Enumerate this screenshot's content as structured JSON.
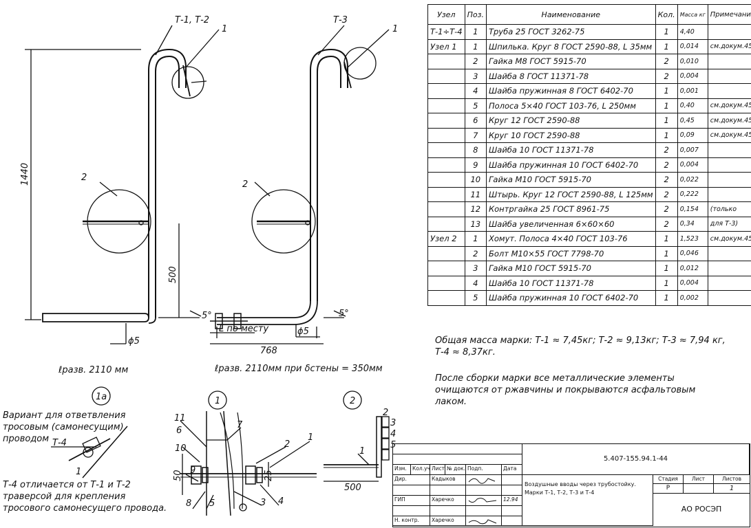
{
  "left_drawing": {
    "node_label": "Т-1, Т-2",
    "callout_1": "1",
    "callout_2": "2",
    "dim_height": "1440",
    "dim_500": "500",
    "angle": "5°",
    "diameter": "ϕ5",
    "length_text": "ℓразв. 2110 мм"
  },
  "right_drawing": {
    "node_label": "Т-3",
    "callout_1": "1",
    "callout_2": "2",
    "angle": "5°",
    "diameter": "ϕ5",
    "by_place": "L по месту",
    "dim_768": "768",
    "length_text": "ℓразв. 2110мм при δстены = 350мм"
  },
  "detail_1a": {
    "circle": "1а",
    "caption": "Вариант для ответвления тросовым (самонесущим) проводом",
    "t4": "Т-4",
    "one": "1",
    "note": "Т-4 отличается от Т-1 и Т-2 траверсой для крепления тросового самонесущего провода."
  },
  "detail_1": {
    "circle": "1",
    "labels": [
      "11",
      "6",
      "10",
      "9",
      "8",
      "5",
      "7",
      "2",
      "1",
      "3",
      "4"
    ],
    "dim_50": "50",
    "dim_25": "25"
  },
  "detail_2": {
    "circle": "2",
    "labels": [
      "1",
      "2",
      "3",
      "4",
      "5"
    ],
    "dim_500": "500"
  },
  "spec_table": {
    "headers": [
      "Узел",
      "Поз.",
      "Наименование",
      "Кол.",
      "Масса кг",
      "Примечание"
    ],
    "rows": [
      [
        "Т-1÷Т-4",
        "1",
        "Труба 25 ГОСТ 3262-75",
        "1",
        "4,40",
        ""
      ],
      [
        "Узел 1",
        "1",
        "Шпилька. Круг 8 ГОСТ 2590-88, L 35мм",
        "1",
        "0,014",
        "см.докум.45"
      ],
      [
        "",
        "2",
        "Гайка М8 ГОСТ 5915-70",
        "2",
        "0,010",
        ""
      ],
      [
        "",
        "3",
        "Шайба 8 ГОСТ 11371-78",
        "2",
        "0,004",
        ""
      ],
      [
        "",
        "4",
        "Шайба пружинная 8 ГОСТ 6402-70",
        "1",
        "0,001",
        ""
      ],
      [
        "",
        "5",
        "Полоса 5×40 ГОСТ 103-76, L 250мм",
        "1",
        "0,40",
        "см.докум.45"
      ],
      [
        "",
        "6",
        "Круг 12 ГОСТ 2590-88",
        "1",
        "0,45",
        "см.докум.45"
      ],
      [
        "",
        "7",
        "Круг 10 ГОСТ 2590-88",
        "1",
        "0,09",
        "см.докум.45"
      ],
      [
        "",
        "8",
        "Шайба 10 ГОСТ 11371-78",
        "2",
        "0,007",
        ""
      ],
      [
        "",
        "9",
        "Шайба пружинная 10 ГОСТ 6402-70",
        "2",
        "0,004",
        ""
      ],
      [
        "",
        "10",
        "Гайка М10 ГОСТ 5915-70",
        "2",
        "0,022",
        ""
      ],
      [
        "",
        "11",
        "Штырь. Круг 12 ГОСТ 2590-88, L 125мм",
        "2",
        "0,222",
        ""
      ],
      [
        "",
        "12",
        "Контргайка 25 ГОСТ 8961-75",
        "2",
        "0,154",
        "(только"
      ],
      [
        "",
        "13",
        "Шайба увеличенная 6×60×60",
        "2",
        "0,34",
        "для Т-3)"
      ],
      [
        "Узел 2",
        "1",
        "Хомут. Полоса 4×40 ГОСТ 103-76",
        "1",
        "1,523",
        "см.докум.45"
      ],
      [
        "",
        "2",
        "Болт М10×55 ГОСТ 7798-70",
        "1",
        "0,046",
        ""
      ],
      [
        "",
        "3",
        "Гайка М10 ГОСТ 5915-70",
        "1",
        "0,012",
        ""
      ],
      [
        "",
        "4",
        "Шайба 10 ГОСТ 11371-78",
        "1",
        "0,004",
        ""
      ],
      [
        "",
        "5",
        "Шайба пружинная 10 ГОСТ 6402-70",
        "1",
        "0,002",
        ""
      ]
    ]
  },
  "mass_note": "Общая масса марки: Т-1 ≈ 7,45кг; Т-2 ≈ 9,13кг; Т-3 ≈ 7,94 кг, Т-4 ≈ 8,37кг.",
  "assembly_note": "После сборки марки все металлические элементы очищаются от ржавчины и покрываются асфальтовым лаком.",
  "title_block": {
    "doc_number": "5.407-155.94.1-44",
    "cols": [
      "Изм.",
      "Кол.уч",
      "Лист",
      "№ док.",
      "Подп.",
      "Дата"
    ],
    "rows": [
      {
        "role": "Дир.",
        "name": "Кадыков",
        "date": ""
      },
      {
        "role": "ГИП",
        "name": "Харечко",
        "date": "12.94"
      },
      {
        "role": "Н. контр.",
        "name": "Харечко",
        "date": ""
      }
    ],
    "title": "Воздушные вводы через трубостойку. Марки Т-1, Т-2, Т-3 и Т-4",
    "stage_label": "Стадия",
    "sheet_label": "Лист",
    "sheets_label": "Листов",
    "stage": "Р",
    "sheets": "1",
    "org": "АО РОСЭП"
  }
}
